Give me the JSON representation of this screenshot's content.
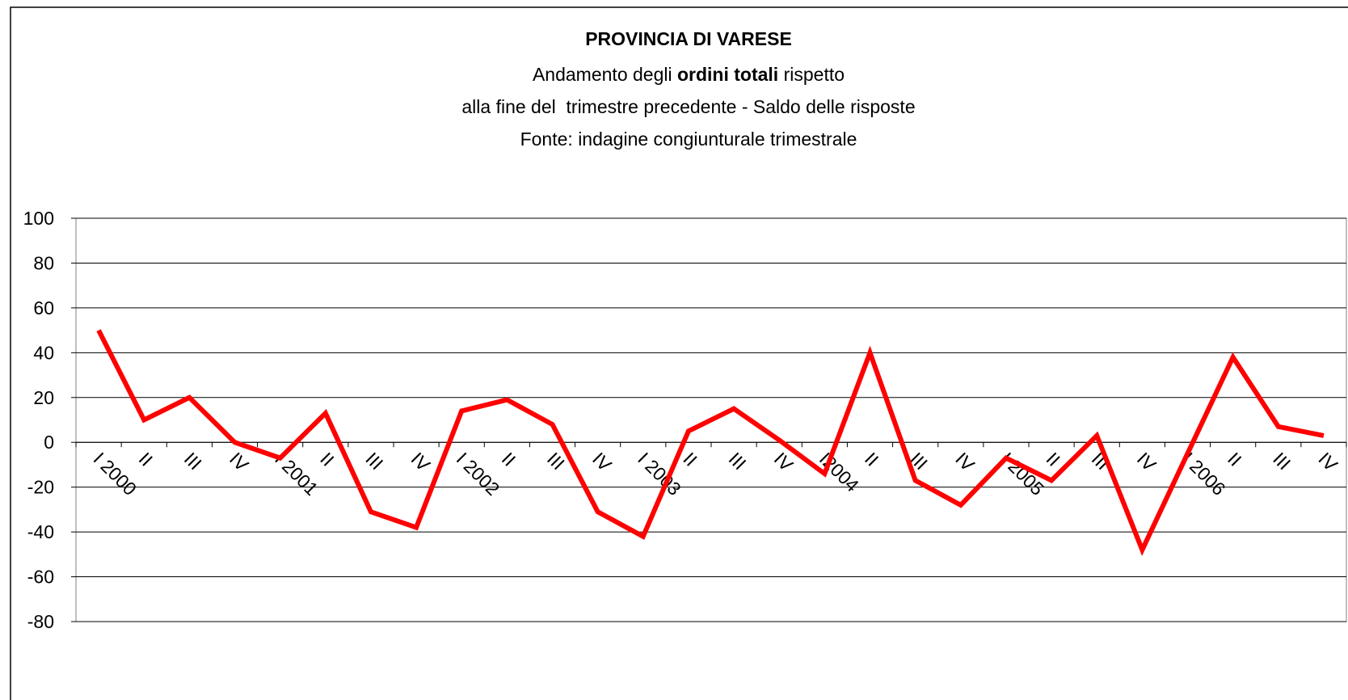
{
  "chart_data": {
    "type": "line",
    "title": "PROVINCIA DI VARESE",
    "subtitle": [
      [
        "Andamento degli",
        "ordini totali",
        "rispetto"
      ],
      [
        "alla fine del  trimestre precedente - Saldo delle risposte"
      ],
      [
        "Fonte: indagine congiunturale trimestrale"
      ]
    ],
    "categories": [
      "I 2000",
      "II",
      "III",
      "IV",
      "I 2001",
      "II",
      "III",
      "IV",
      "I 2002",
      "II",
      "III",
      "IV",
      "I 2003",
      "II",
      "III",
      "IV",
      "I2004",
      "II",
      "III",
      "IV",
      "I 2005",
      "II",
      "III",
      "IV",
      "I 2006",
      "II",
      "III",
      "IV"
    ],
    "values": [
      50,
      10,
      20,
      0,
      -7,
      13,
      -31,
      -38,
      14,
      19,
      8,
      -31,
      -42,
      5,
      15,
      1,
      -14,
      40,
      -17,
      -28,
      -7,
      -17,
      3,
      -48,
      -5,
      38,
      7,
      3
    ],
    "color": "#ff0000",
    "ylim": [
      -80,
      100
    ],
    "yticks": [
      -80,
      -60,
      -40,
      -20,
      0,
      20,
      40,
      60,
      80,
      100
    ],
    "grid": true
  }
}
